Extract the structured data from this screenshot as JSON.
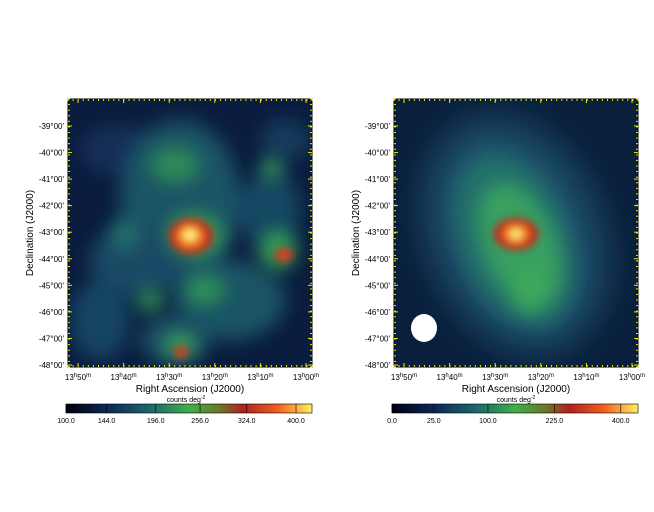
{
  "panels": [
    {
      "id": "left",
      "y_axis_label": "Declination (J2000)",
      "x_axis_label": "Right Ascension (J2000)",
      "y_ticks": [
        "-39°00'",
        "-40°00'",
        "-41°00'",
        "-42°00'",
        "-43°00'",
        "-44°00'",
        "-45°00'",
        "-46°00'",
        "-47°00'",
        "-48°00'"
      ],
      "x_ticks": [
        {
          "h": "13",
          "m": "50"
        },
        {
          "h": "13",
          "m": "40"
        },
        {
          "h": "13",
          "m": "30"
        },
        {
          "h": "13",
          "m": "20"
        },
        {
          "h": "13",
          "m": "10"
        },
        {
          "h": "13",
          "m": "00"
        }
      ],
      "colorbar_label": "counts deg",
      "colorbar_label_exp": "-2",
      "colorbar_ticks": [
        "100.0",
        "144.0",
        "196.0",
        "256.0",
        "324.0",
        "400.0"
      ]
    },
    {
      "id": "right",
      "y_axis_label": "Declination (J2000)",
      "x_axis_label": "Right Ascension (J2000)",
      "y_ticks": [
        "-39°00'",
        "-40°00'",
        "-41°00'",
        "-42°00'",
        "-43°00'",
        "-44°00'",
        "-45°00'",
        "-46°00'",
        "-47°00'",
        "-48°00'"
      ],
      "x_ticks": [
        {
          "h": "13",
          "m": "50"
        },
        {
          "h": "13",
          "m": "40"
        },
        {
          "h": "13",
          "m": "30"
        },
        {
          "h": "13",
          "m": "20"
        },
        {
          "h": "13",
          "m": "10"
        },
        {
          "h": "13",
          "m": "00"
        }
      ],
      "colorbar_label": "counts deg",
      "colorbar_label_exp": "-2",
      "colorbar_ticks": [
        "0.0",
        "25.0",
        "100.0",
        "225.0",
        "400.0"
      ]
    }
  ],
  "colors": {
    "background_map": "#0a1a3a",
    "frame_tick": "#e8e800",
    "beam_ellipse": "#ffffff"
  }
}
